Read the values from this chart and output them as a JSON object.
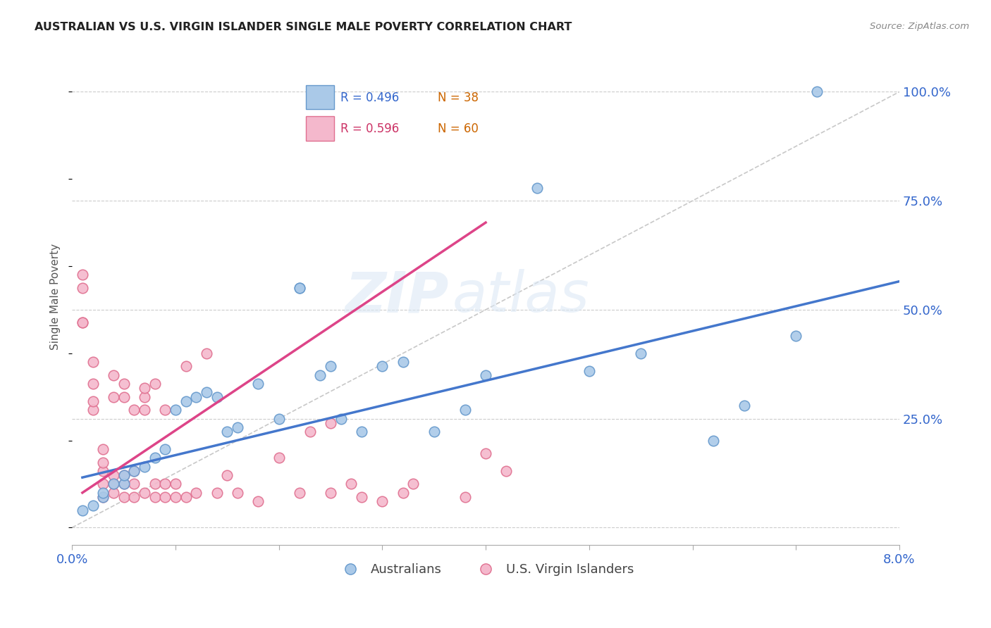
{
  "title": "AUSTRALIAN VS U.S. VIRGIN ISLANDER SINGLE MALE POVERTY CORRELATION CHART",
  "source": "Source: ZipAtlas.com",
  "ylabel": "Single Male Poverty",
  "xlim": [
    0.0,
    0.08
  ],
  "ylim": [
    -0.04,
    1.1
  ],
  "background_color": "#ffffff",
  "grid_color": "#cccccc",
  "blue_color": "#aac9e8",
  "blue_edge": "#6699cc",
  "pink_color": "#f4b8cc",
  "pink_edge": "#e07090",
  "blue_line_color": "#4477cc",
  "pink_line_color": "#dd4488",
  "diagonal_color": "#c8c8c8",
  "blue_x": [
    0.001,
    0.002,
    0.003,
    0.003,
    0.004,
    0.005,
    0.005,
    0.006,
    0.007,
    0.008,
    0.009,
    0.01,
    0.011,
    0.012,
    0.013,
    0.014,
    0.015,
    0.016,
    0.018,
    0.02,
    0.022,
    0.022,
    0.024,
    0.025,
    0.026,
    0.028,
    0.03,
    0.032,
    0.035,
    0.038,
    0.04,
    0.045,
    0.05,
    0.055,
    0.062,
    0.065,
    0.07,
    0.072
  ],
  "blue_y": [
    0.04,
    0.05,
    0.07,
    0.08,
    0.1,
    0.1,
    0.12,
    0.13,
    0.14,
    0.16,
    0.18,
    0.27,
    0.29,
    0.3,
    0.31,
    0.3,
    0.22,
    0.23,
    0.33,
    0.25,
    0.55,
    0.55,
    0.35,
    0.37,
    0.25,
    0.22,
    0.37,
    0.38,
    0.22,
    0.27,
    0.35,
    0.78,
    0.36,
    0.4,
    0.2,
    0.28,
    0.44,
    1.0
  ],
  "pink_x": [
    0.001,
    0.001,
    0.001,
    0.001,
    0.002,
    0.002,
    0.002,
    0.002,
    0.003,
    0.003,
    0.003,
    0.003,
    0.003,
    0.004,
    0.004,
    0.004,
    0.004,
    0.004,
    0.005,
    0.005,
    0.005,
    0.005,
    0.005,
    0.006,
    0.006,
    0.006,
    0.006,
    0.007,
    0.007,
    0.007,
    0.007,
    0.008,
    0.008,
    0.008,
    0.009,
    0.009,
    0.009,
    0.01,
    0.01,
    0.011,
    0.011,
    0.012,
    0.013,
    0.014,
    0.015,
    0.016,
    0.018,
    0.02,
    0.022,
    0.023,
    0.025,
    0.025,
    0.027,
    0.028,
    0.03,
    0.032,
    0.033,
    0.038,
    0.04,
    0.042
  ],
  "pink_y": [
    0.55,
    0.58,
    0.47,
    0.47,
    0.27,
    0.29,
    0.33,
    0.38,
    0.07,
    0.1,
    0.13,
    0.15,
    0.18,
    0.08,
    0.1,
    0.12,
    0.3,
    0.35,
    0.07,
    0.1,
    0.12,
    0.3,
    0.33,
    0.07,
    0.1,
    0.13,
    0.27,
    0.08,
    0.27,
    0.3,
    0.32,
    0.07,
    0.1,
    0.33,
    0.07,
    0.1,
    0.27,
    0.07,
    0.1,
    0.07,
    0.37,
    0.08,
    0.4,
    0.08,
    0.12,
    0.08,
    0.06,
    0.16,
    0.08,
    0.22,
    0.24,
    0.08,
    0.1,
    0.07,
    0.06,
    0.08,
    0.1,
    0.07,
    0.17,
    0.13
  ],
  "legend_blue_label_r": "R = 0.496",
  "legend_blue_label_n": "N = 38",
  "legend_pink_label_r": "R = 0.596",
  "legend_pink_label_n": "N = 60",
  "legend_australians": "Australians",
  "legend_usvi": "U.S. Virgin Islanders",
  "blue_line_x0": 0.001,
  "blue_line_x1": 0.08,
  "blue_line_y0": 0.115,
  "blue_line_y1": 0.565,
  "pink_line_x0": 0.001,
  "pink_line_x1": 0.04,
  "pink_line_y0": 0.08,
  "pink_line_y1": 0.7
}
